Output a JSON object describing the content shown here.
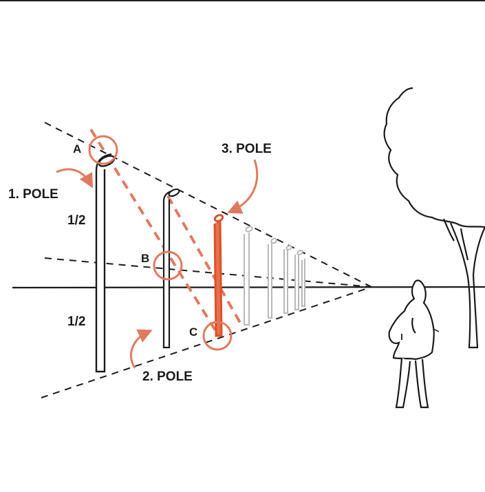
{
  "labels": {
    "point_a": "A",
    "point_b": "B",
    "point_c": "C",
    "pole_1": "1. POLE",
    "pole_2": "2. POLE",
    "pole_3": "3. POLE",
    "half_top": "1/2",
    "half_bottom": "1/2"
  },
  "colors": {
    "ink": "#1a1a1a",
    "accent": "#e07a5f",
    "accent_dark": "#d9532b",
    "ghost": "#b8b8b8"
  }
}
